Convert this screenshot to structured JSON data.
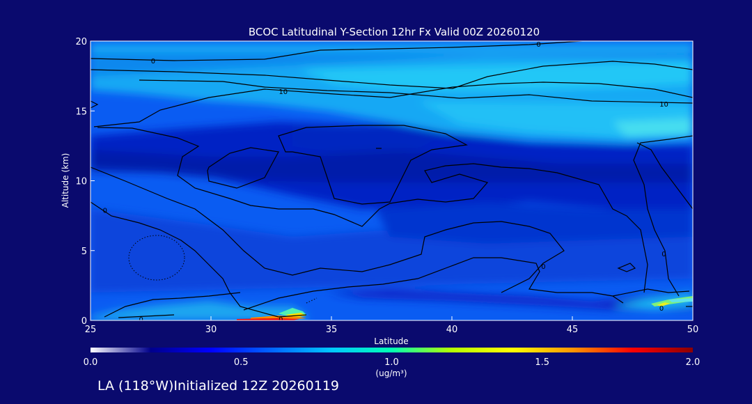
{
  "chart_data": {
    "type": "heatmap",
    "title": "BCOC Latitudinal Y-Section 12hr  Fx Valid 00Z 20260120",
    "xlabel": "Latitude",
    "ylabel": "Altitude (km)",
    "xlim": [
      25,
      50
    ],
    "ylim": [
      0,
      20
    ],
    "x_ticks": [
      "25",
      "30",
      "35",
      "40",
      "45",
      "50"
    ],
    "y_ticks": [
      "0",
      "5",
      "10",
      "15",
      "20"
    ],
    "colorbar": {
      "min": 0.0,
      "max": 2.0,
      "ticks": [
        "0.0",
        "0.5",
        "1.0",
        "1.5",
        "2.0"
      ],
      "unit": "(ug/m³)",
      "colors": [
        "#ffffff",
        "#00008b",
        "#0000ff",
        "#0064ff",
        "#00c8ff",
        "#00ffb4",
        "#b4ff00",
        "#ffff00",
        "#ff9600",
        "#ff0000",
        "#8b0000"
      ]
    },
    "contour_labels": [
      {
        "text": "0",
        "x": 27.6,
        "y": 18.6
      },
      {
        "text": "0",
        "x": 43.6,
        "y": 19.8
      },
      {
        "text": "10",
        "x": 33.0,
        "y": 16.4
      },
      {
        "text": "10",
        "x": 48.8,
        "y": 15.5
      },
      {
        "text": "0",
        "x": 25.6,
        "y": 7.9
      },
      {
        "text": "0",
        "x": 27.1,
        "y": 0.1
      },
      {
        "text": "0",
        "x": 32.9,
        "y": 0.1
      },
      {
        "text": "0",
        "x": 48.7,
        "y": 0.9
      },
      {
        "text": "0",
        "x": 48.8,
        "y": 4.8
      },
      {
        "text": "0",
        "x": 43.8,
        "y": 3.9
      }
    ]
  },
  "footer": {
    "caption": "LA (118°W)Initialized 12Z 20260119"
  }
}
